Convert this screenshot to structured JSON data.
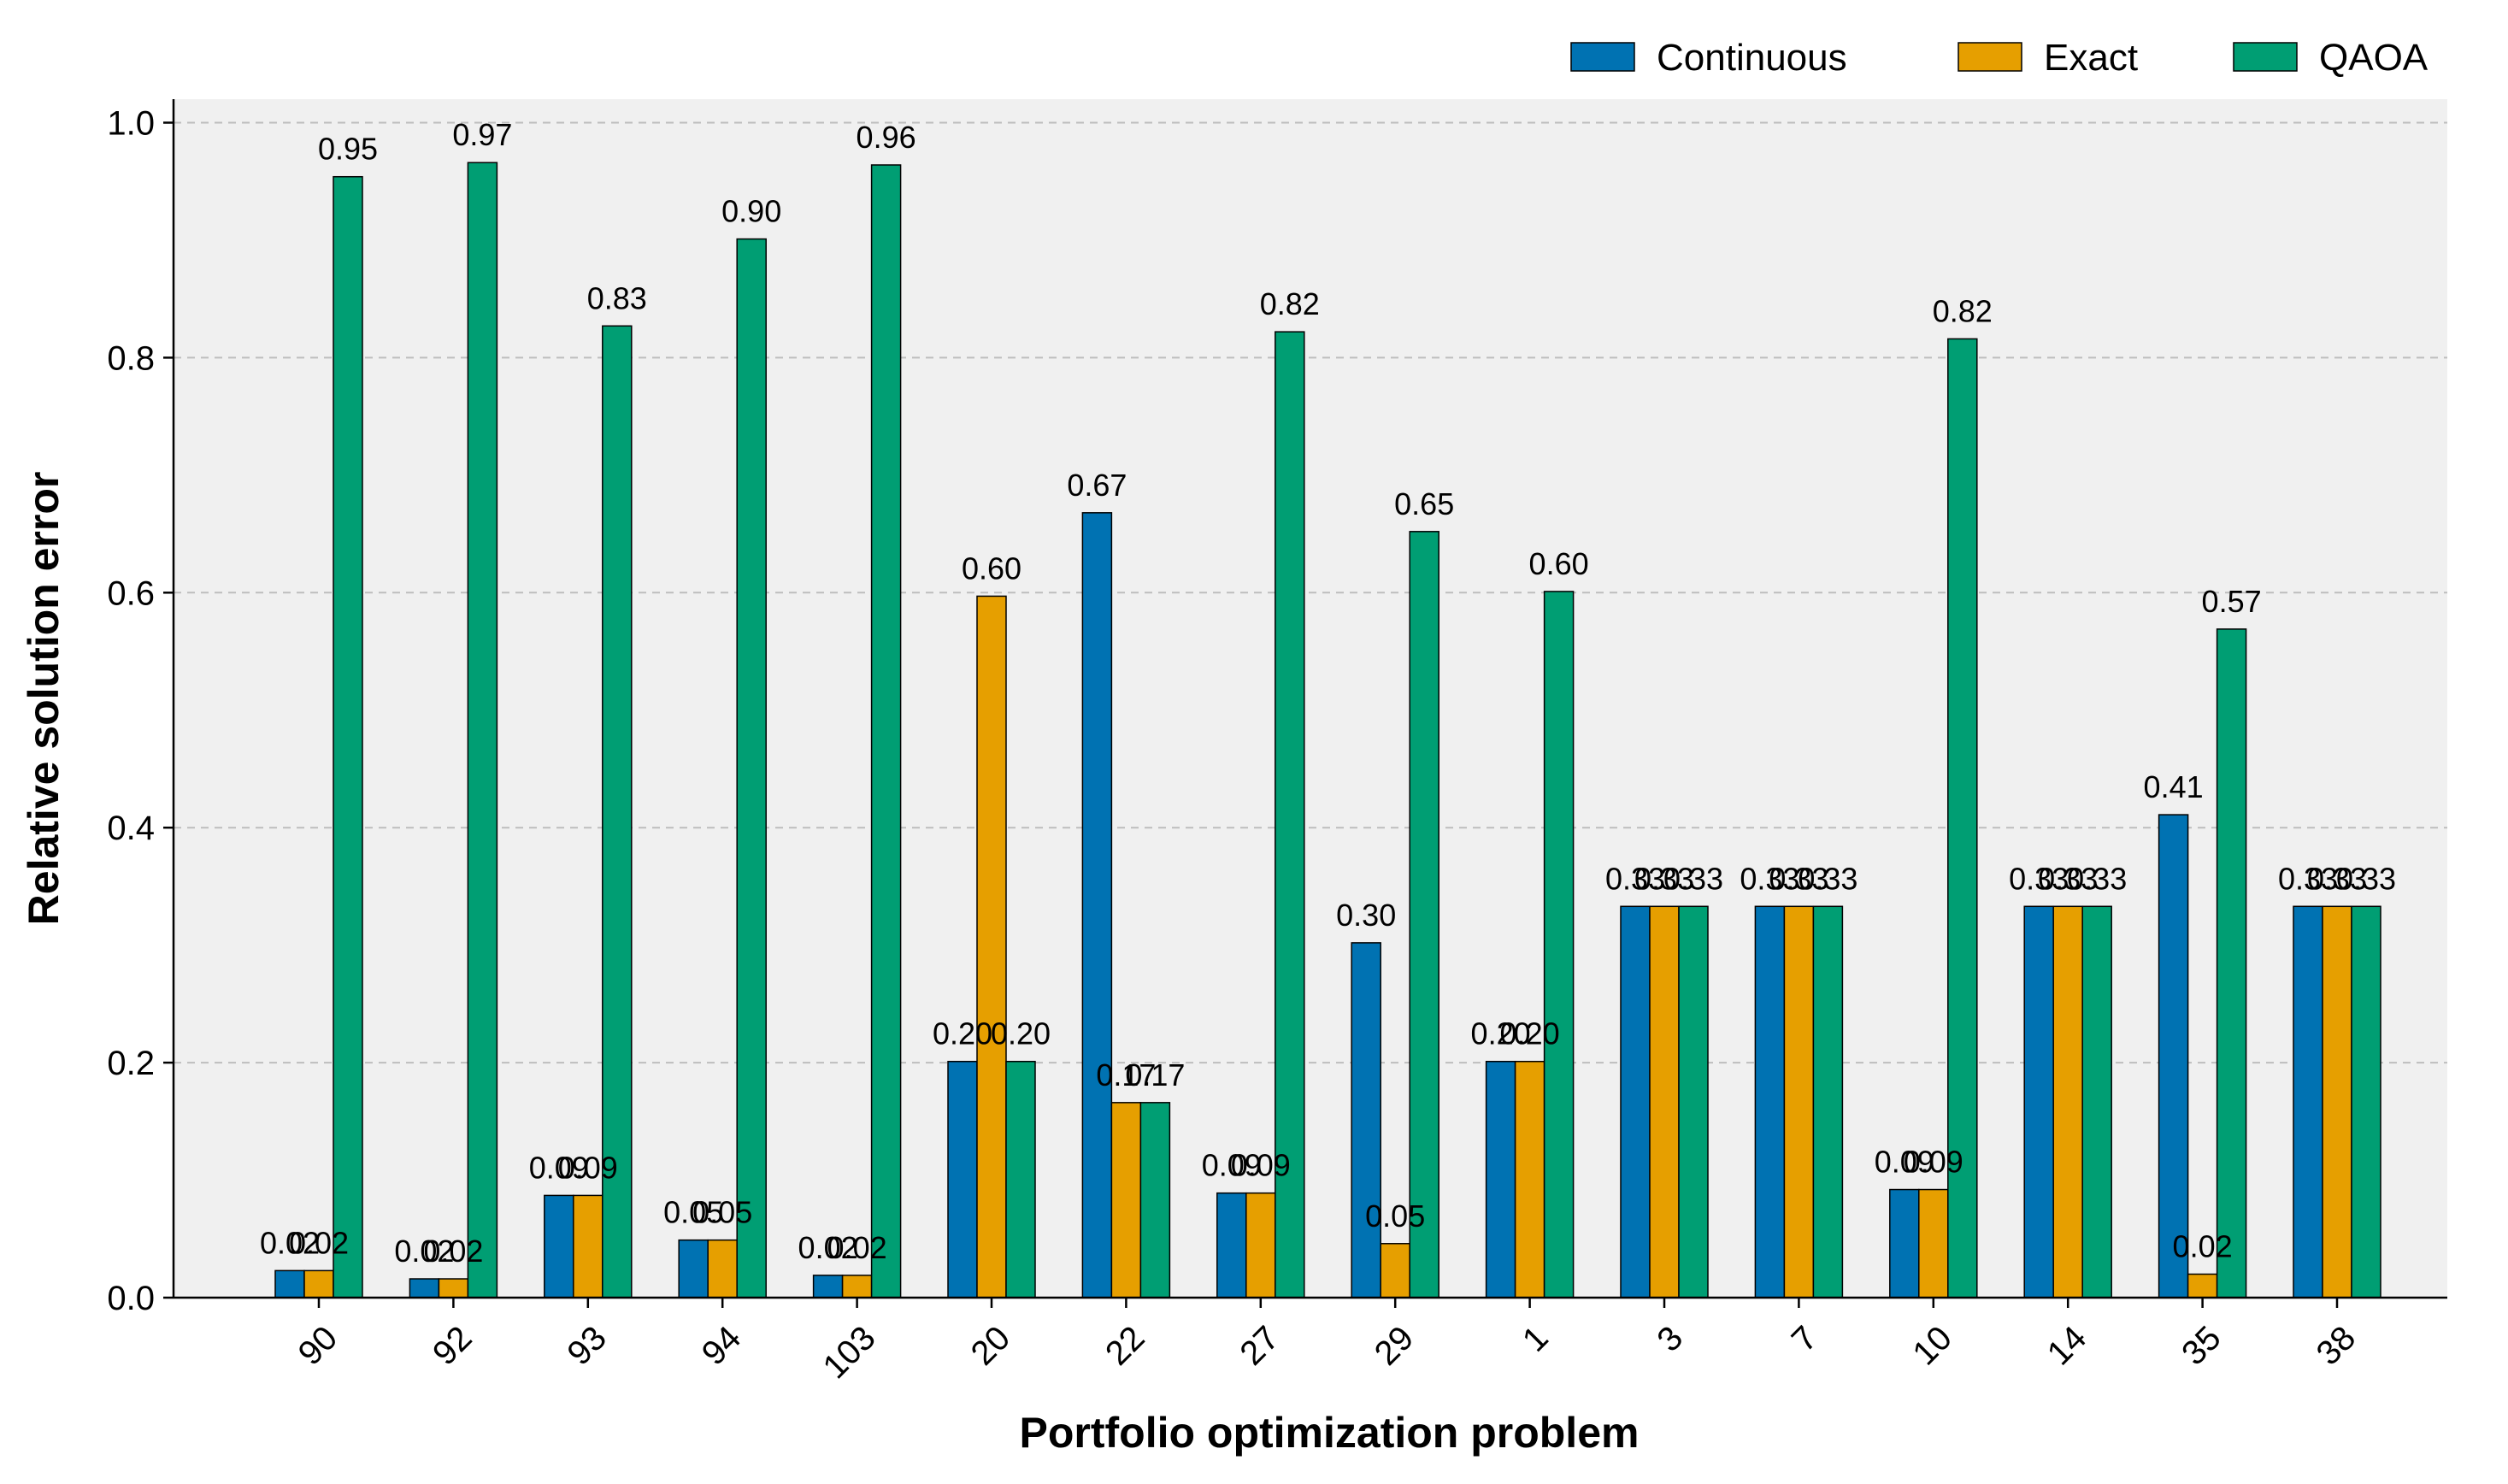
{
  "chart_data": {
    "type": "bar",
    "title": "",
    "xlabel": "Portfolio optimization problem",
    "ylabel": "Relative solution error",
    "ylim": [
      0,
      1.02
    ],
    "yticks": [
      0.0,
      0.2,
      0.4,
      0.6,
      0.8,
      1.0
    ],
    "ytick_labels": [
      "0.0",
      "0.2",
      "0.4",
      "0.6",
      "0.8",
      "1.0"
    ],
    "grid": "horizontal dashed",
    "legend_position": "top-right",
    "categories": [
      "90",
      "92",
      "93",
      "94",
      "103",
      "20",
      "22",
      "27",
      "29",
      "1",
      "3",
      "7",
      "10",
      "14",
      "35",
      "38"
    ],
    "series": [
      {
        "name": "Continuous",
        "color": "#0072b2",
        "values": [
          0.023,
          0.016,
          0.087,
          0.049,
          0.019,
          0.201,
          0.668,
          0.089,
          0.302,
          0.201,
          0.333,
          0.333,
          0.092,
          0.333,
          0.411,
          0.333
        ],
        "labels": [
          "0.02",
          "0.02",
          "0.09",
          "0.05",
          "0.02",
          "0.20",
          "0.67",
          "0.09",
          "0.30",
          "0.20",
          "0.33",
          "0.33",
          "0.09",
          "0.33",
          "0.41",
          "0.33"
        ]
      },
      {
        "name": "Exact",
        "color": "#e69f00",
        "values": [
          0.023,
          0.016,
          0.087,
          0.049,
          0.019,
          0.597,
          0.166,
          0.089,
          0.046,
          0.201,
          0.333,
          0.333,
          0.092,
          0.333,
          0.02,
          0.333
        ],
        "labels": [
          "0.02",
          "0.02",
          "0.09",
          "0.05",
          "0.02",
          "0.60",
          "0.17",
          "0.09",
          "0.05",
          "0.20",
          "0.33",
          "0.33",
          "0.09",
          "0.33",
          "0.02",
          "0.33"
        ]
      },
      {
        "name": "QAOA",
        "color": "#009e73",
        "values": [
          0.954,
          0.966,
          0.827,
          0.901,
          0.964,
          0.201,
          0.166,
          0.822,
          0.652,
          0.601,
          0.333,
          0.333,
          0.816,
          0.333,
          0.569,
          0.333
        ],
        "labels": [
          "0.95",
          "0.97",
          "0.83",
          "0.90",
          "0.96",
          "0.20",
          "0.17",
          "0.82",
          "0.65",
          "0.60",
          "0.33",
          "0.33",
          "0.82",
          "0.33",
          "0.57",
          "0.33"
        ]
      }
    ]
  }
}
